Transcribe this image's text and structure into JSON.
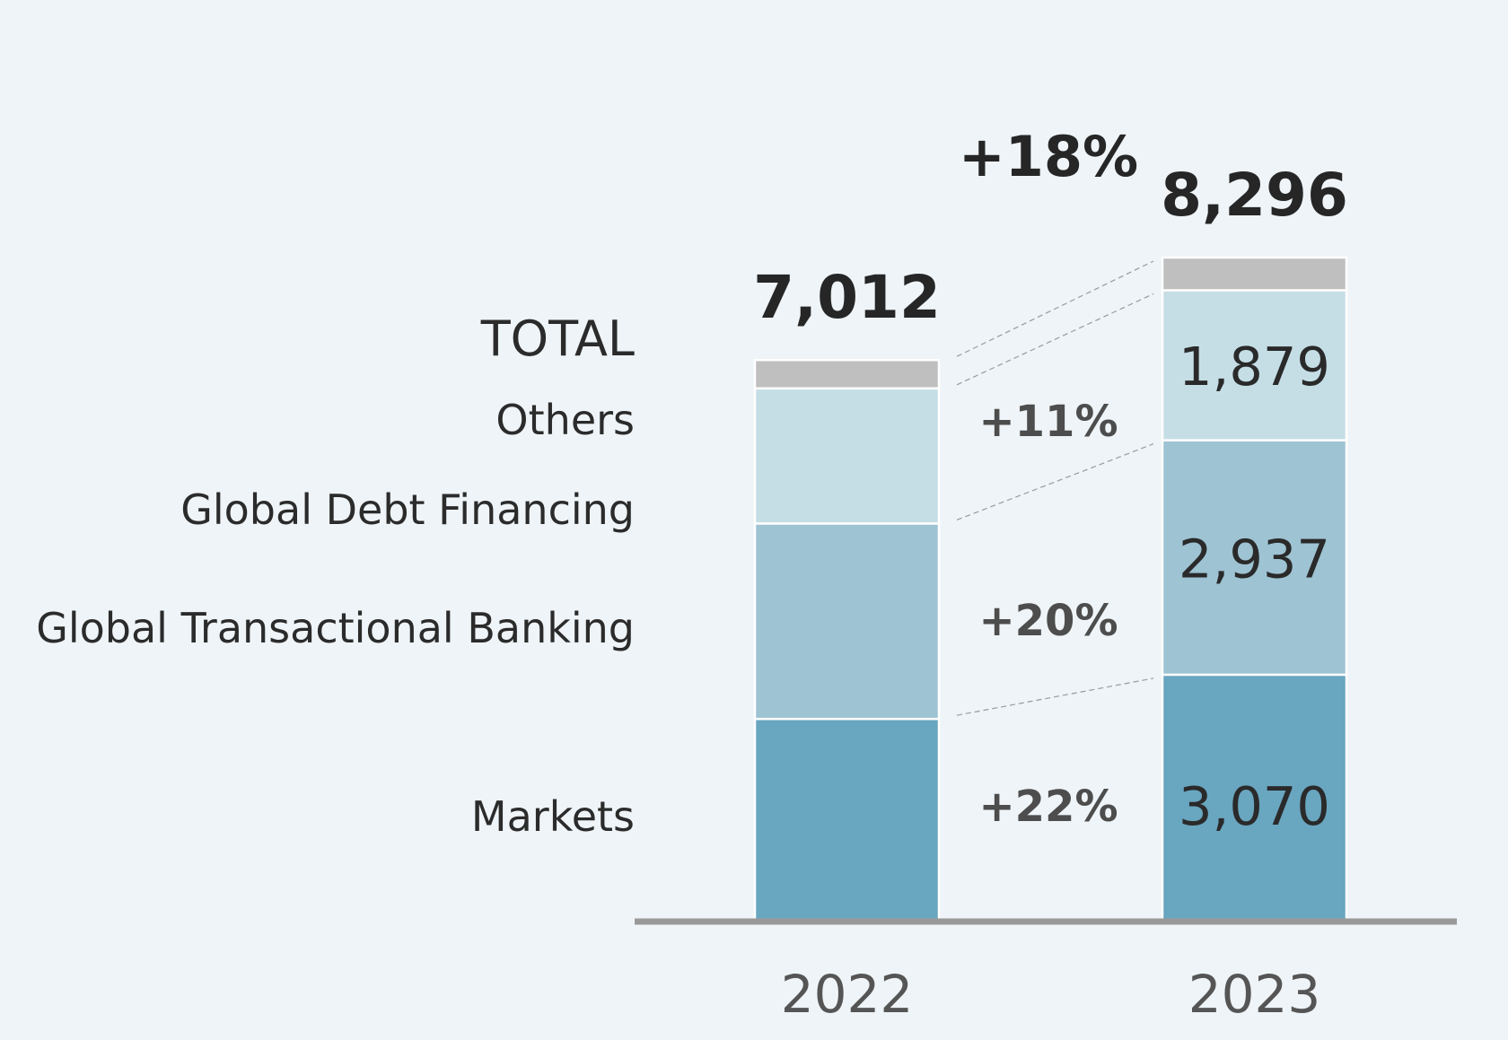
{
  "chart_data": {
    "type": "bar",
    "stacked": true,
    "categories": [
      "2022",
      "2023"
    ],
    "series": [
      {
        "name": "Markets",
        "values": [
          2516,
          3070
        ],
        "color": "#69a6c0",
        "growth": "+22%"
      },
      {
        "name": "Global Transactional Banking",
        "values": [
          2448,
          2937
        ],
        "color": "#9ec3d3",
        "growth": "+20%"
      },
      {
        "name": "Global Debt Financing",
        "values": [
          1693,
          1879
        ],
        "color": "#c5dee6",
        "growth": "+11%"
      },
      {
        "name": "Others",
        "values": [
          355,
          410
        ],
        "color": "#bfbfbf",
        "growth": ""
      }
    ],
    "totals": [
      7012,
      8296
    ],
    "total_labels": [
      "7,012",
      "8,296"
    ],
    "total_growth": "+18%",
    "total_row_label": "TOTAL",
    "segment_labels_2023": [
      "3,070",
      "2,937",
      "1,879",
      ""
    ],
    "ylim": [
      0,
      8296
    ],
    "grid": false,
    "legend": "left"
  }
}
